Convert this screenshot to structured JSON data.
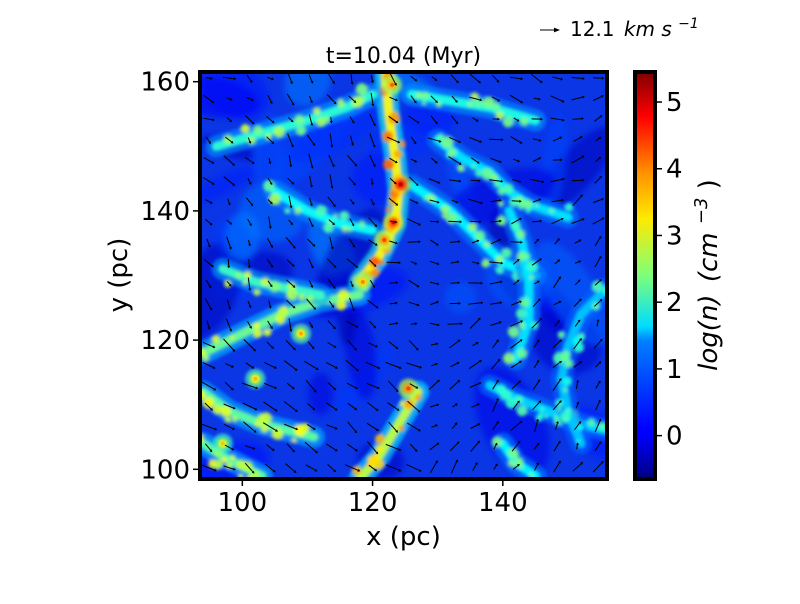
{
  "chart_data": {
    "type": "heatmap",
    "title": "t=10.04 (Myr)",
    "xlabel": "x (pc)",
    "ylabel": "y (pc)",
    "xlim": [
      93.5,
      156
    ],
    "ylim": [
      98.5,
      161.5
    ],
    "x_ticks": [
      100,
      120,
      140
    ],
    "y_ticks": [
      100,
      120,
      140,
      160
    ],
    "colorbar": {
      "label_main": "log(n)",
      "label_unit": "(cm",
      "label_exp": "−3",
      "label_close": ")",
      "range": [
        -0.65,
        5.45
      ],
      "ticks": [
        0,
        1,
        2,
        3,
        4,
        5
      ],
      "colormap": "jet"
    },
    "quiver_key": {
      "value": "12.1",
      "unit": "km s",
      "exp": "−1"
    },
    "density_features": [
      {
        "kind": "filament",
        "points": [
          [
            122,
            161
          ],
          [
            122.5,
            155
          ],
          [
            123.5,
            148
          ],
          [
            124,
            143
          ],
          [
            123.5,
            138
          ],
          [
            121,
            133
          ],
          [
            118,
            129
          ]
        ],
        "level": 3.2
      },
      {
        "kind": "filament",
        "points": [
          [
            94,
            118
          ],
          [
            100,
            121
          ],
          [
            106,
            124
          ],
          [
            112,
            126
          ],
          [
            118,
            127
          ]
        ],
        "level": 2.3
      },
      {
        "kind": "filament",
        "points": [
          [
            127,
            112
          ],
          [
            124,
            107
          ],
          [
            121,
            102
          ],
          [
            118,
            98.5
          ]
        ],
        "level": 2.8
      },
      {
        "kind": "filament",
        "points": [
          [
            94,
            112
          ],
          [
            98,
            109
          ],
          [
            103,
            107
          ],
          [
            107,
            106
          ],
          [
            111,
            105
          ]
        ],
        "level": 2.2
      },
      {
        "kind": "filament",
        "points": [
          [
            94,
            104
          ],
          [
            97,
            102
          ],
          [
            100,
            100.5
          ],
          [
            103,
            99
          ]
        ],
        "level": 2.2
      },
      {
        "kind": "filament",
        "points": [
          [
            96,
            150
          ],
          [
            103,
            152
          ],
          [
            110,
            154
          ],
          [
            116,
            156
          ],
          [
            120,
            158
          ]
        ],
        "level": 1.9
      },
      {
        "kind": "filament",
        "points": [
          [
            126,
            158
          ],
          [
            132,
            157
          ],
          [
            138,
            156
          ],
          [
            145,
            154
          ]
        ],
        "level": 1.8
      },
      {
        "kind": "filament",
        "points": [
          [
            126,
            144
          ],
          [
            132,
            140
          ],
          [
            136,
            136
          ],
          [
            140,
            132
          ],
          [
            145,
            130
          ]
        ],
        "level": 1.6
      },
      {
        "kind": "filament",
        "points": [
          [
            141,
            140
          ],
          [
            143,
            135
          ],
          [
            144,
            129
          ],
          [
            144,
            123
          ],
          [
            142,
            117
          ]
        ],
        "level": 1.5
      },
      {
        "kind": "filament",
        "points": [
          [
            138,
            113
          ],
          [
            142,
            111
          ],
          [
            147,
            109
          ],
          [
            152,
            107
          ],
          [
            156,
            106
          ]
        ],
        "level": 1.4
      },
      {
        "kind": "filament",
        "points": [
          [
            156,
            128
          ],
          [
            152,
            124
          ],
          [
            150,
            119
          ],
          [
            149,
            114
          ],
          [
            150,
            109
          ],
          [
            152,
            104
          ]
        ],
        "level": 1.3
      },
      {
        "kind": "filament",
        "points": [
          [
            105,
            143
          ],
          [
            110,
            140
          ],
          [
            115,
            138
          ],
          [
            120,
            137
          ]
        ],
        "level": 1.7
      },
      {
        "kind": "filament",
        "points": [
          [
            97,
            131
          ],
          [
            102,
            129
          ],
          [
            107,
            128
          ],
          [
            112,
            127
          ]
        ],
        "level": 2.0
      },
      {
        "kind": "filament",
        "points": [
          [
            130,
            151
          ],
          [
            134,
            148
          ],
          [
            138,
            146
          ],
          [
            141,
            143
          ],
          [
            144,
            141
          ],
          [
            150,
            139
          ]
        ],
        "level": 1.5
      },
      {
        "kind": "filament",
        "points": [
          [
            140,
            104
          ],
          [
            142,
            101
          ],
          [
            145,
            99
          ]
        ],
        "level": 1.6
      },
      {
        "kind": "clump",
        "center": [
          124.3,
          144.1
        ],
        "level": 4.6
      },
      {
        "kind": "clump",
        "center": [
          123.2,
          138.2
        ],
        "level": 4.3
      },
      {
        "kind": "clump",
        "center": [
          121.8,
          135.5
        ],
        "level": 3.8
      },
      {
        "kind": "clump",
        "center": [
          125.5,
          112.5
        ],
        "level": 3.8
      },
      {
        "kind": "clump",
        "center": [
          123,
          159.5
        ],
        "level": 3.6
      },
      {
        "kind": "clump",
        "center": [
          118.5,
          129
        ],
        "level": 3.4
      },
      {
        "kind": "clump",
        "center": [
          109,
          121
        ],
        "level": 3.2
      },
      {
        "kind": "clump",
        "center": [
          102,
          114
        ],
        "level": 3.1
      },
      {
        "kind": "clump",
        "center": [
          97,
          104
        ],
        "level": 3.0
      }
    ]
  }
}
